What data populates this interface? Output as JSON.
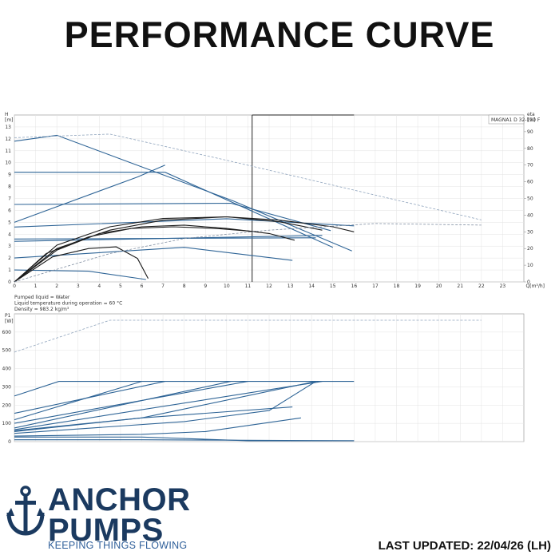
{
  "page": {
    "title": "PERFORMANCE CURVE",
    "last_updated": "LAST UPDATED: 22/04/26 (LH)"
  },
  "brand": {
    "name_line1": "ANCHOR",
    "name_line2": "PUMPS",
    "tagline": "KEEPING THINGS FLOWING",
    "color": "#1b3a60",
    "tagline_color": "#2f5f9a",
    "icon": "anchor-icon"
  },
  "chart_data": [
    {
      "type": "line",
      "model_label": "MAGNA1 D 32-120 F",
      "ylabel": "H",
      "yunit": "[m]",
      "y2label": "eta",
      "y2unit": "[%]",
      "xlabel": "Q",
      "xunit": "[m³/h]",
      "xlim": [
        0,
        24
      ],
      "ylim": [
        0,
        14
      ],
      "y2lim": [
        0,
        100
      ],
      "x_ticks": [
        0,
        1,
        2,
        3,
        4,
        5,
        6,
        7,
        8,
        9,
        10,
        11,
        12,
        13,
        14,
        15,
        16,
        17,
        18,
        19,
        20,
        21,
        22,
        23
      ],
      "y_ticks": [
        0,
        1,
        2,
        3,
        4,
        5,
        6,
        7,
        8,
        9,
        10,
        11,
        12,
        13
      ],
      "y2_ticks": [
        0,
        10,
        20,
        30,
        40,
        50,
        60,
        70,
        80,
        90
      ],
      "grid": true,
      "operating_point_q": 11.2,
      "notes": [
        "Pumped liquid = Water",
        "Liquid temperature during operation = 60 °C",
        "Density = 983.2 kg/m³"
      ],
      "series": [
        {
          "group": "head",
          "points": [
            [
              0,
              11.8
            ],
            [
              2,
              12.3
            ],
            [
              10.3,
              6.8
            ],
            [
              15.9,
              2.6
            ]
          ]
        },
        {
          "group": "head",
          "points": [
            [
              0,
              9.2
            ],
            [
              7.1,
              9.2
            ],
            [
              15,
              2.9
            ]
          ]
        },
        {
          "group": "head",
          "points": [
            [
              0,
              5
            ],
            [
              5.8,
              8.8
            ],
            [
              7.1,
              9.8
            ]
          ]
        },
        {
          "group": "head",
          "points": [
            [
              0,
              6.5
            ],
            [
              10.2,
              6.6
            ],
            [
              14.9,
              4.3
            ]
          ]
        },
        {
          "group": "head",
          "points": [
            [
              0,
              4.6
            ],
            [
              10,
              5.3
            ],
            [
              16,
              4.7
            ]
          ]
        },
        {
          "group": "head",
          "points": [
            [
              0,
              3.6
            ],
            [
              14.2,
              3.7
            ]
          ]
        },
        {
          "group": "head",
          "points": [
            [
              0,
              3.4
            ],
            [
              14.5,
              3.9
            ]
          ]
        },
        {
          "group": "head",
          "points": [
            [
              0,
              2
            ],
            [
              8,
              2.9
            ],
            [
              13.1,
              1.8
            ]
          ]
        },
        {
          "group": "head",
          "points": [
            [
              0,
              1
            ],
            [
              3.5,
              0.9
            ],
            [
              6.2,
              0.2
            ]
          ]
        },
        {
          "group": "eta",
          "points": [
            [
              0,
              0
            ],
            [
              2,
              20
            ],
            [
              4.5,
              31
            ],
            [
              7,
              37
            ],
            [
              10,
              39
            ],
            [
              12.5,
              37
            ],
            [
              15,
              33
            ],
            [
              16,
              30
            ]
          ]
        },
        {
          "group": "eta",
          "points": [
            [
              0,
              0
            ],
            [
              2,
              22
            ],
            [
              4.5,
              33
            ],
            [
              7,
              38
            ],
            [
              10,
              39
            ],
            [
              12.5,
              36
            ],
            [
              14.5,
              31
            ]
          ]
        },
        {
          "group": "eta",
          "points": [
            [
              0,
              0
            ],
            [
              2,
              19
            ],
            [
              4,
              29
            ],
            [
              6,
              33
            ],
            [
              8,
              34
            ],
            [
              10,
              32
            ],
            [
              12,
              29
            ],
            [
              13.2,
              25
            ]
          ]
        },
        {
          "group": "eta",
          "points": [
            [
              0,
              0
            ],
            [
              1.8,
              15
            ],
            [
              3.5,
              20
            ],
            [
              4.8,
              21
            ],
            [
              5.8,
              14
            ],
            [
              6.3,
              2
            ]
          ]
        },
        {
          "group": "eta",
          "points": [
            [
              0,
              0
            ],
            [
              1.5,
              17
            ],
            [
              3.5,
              27
            ],
            [
              5.5,
              32
            ],
            [
              7.5,
              33
            ],
            [
              9.5,
              32
            ],
            [
              11.5,
              30
            ]
          ]
        },
        {
          "group": "eta_envelope",
          "points": [
            [
              0,
              0
            ],
            [
              4.5,
              17
            ],
            [
              8,
              26
            ],
            [
              12,
              31
            ],
            [
              17,
              35
            ],
            [
              22,
              34
            ]
          ]
        },
        {
          "group": "head_max",
          "points": [
            [
              0,
              12.1
            ],
            [
              4.5,
              12.4
            ],
            [
              10,
              10.2
            ],
            [
              22,
              5.2
            ]
          ]
        }
      ]
    },
    {
      "type": "line",
      "ylabel": "P1",
      "yunit": "[W]",
      "xlim": [
        0,
        24
      ],
      "ylim": [
        0,
        700
      ],
      "y_ticks": [
        0,
        100,
        200,
        300,
        400,
        500,
        600
      ],
      "grid": true,
      "series": [
        {
          "group": "power",
          "points": [
            [
              0,
              250
            ],
            [
              2.1,
              330
            ],
            [
              16,
              330
            ]
          ]
        },
        {
          "group": "power",
          "points": [
            [
              0,
              155
            ],
            [
              7.1,
              330
            ]
          ]
        },
        {
          "group": "power",
          "points": [
            [
              0,
              120
            ],
            [
              6,
              330
            ]
          ]
        },
        {
          "group": "power",
          "points": [
            [
              0,
              100
            ],
            [
              11,
              330
            ]
          ]
        },
        {
          "group": "power",
          "points": [
            [
              0,
              75
            ],
            [
              10.2,
              330
            ]
          ]
        },
        {
          "group": "power",
          "points": [
            [
              0,
              65
            ],
            [
              14.5,
              330
            ]
          ]
        },
        {
          "group": "power",
          "points": [
            [
              0,
              60
            ],
            [
              6,
              130
            ],
            [
              14.2,
              330
            ]
          ]
        },
        {
          "group": "power",
          "points": [
            [
              0,
              55
            ],
            [
              6,
              130
            ],
            [
              13.1,
              190
            ]
          ]
        },
        {
          "group": "power",
          "points": [
            [
              0,
              45
            ],
            [
              8,
              110
            ],
            [
              12,
              170
            ],
            [
              14.2,
              330
            ]
          ]
        },
        {
          "group": "power",
          "points": [
            [
              0,
              30
            ],
            [
              6,
              40
            ],
            [
              9,
              55
            ],
            [
              13.5,
              130
            ]
          ]
        },
        {
          "group": "power",
          "points": [
            [
              0,
              25
            ],
            [
              6,
              25
            ],
            [
              11,
              5
            ],
            [
              16,
              5
            ]
          ]
        },
        {
          "group": "power",
          "points": [
            [
              0,
              10
            ],
            [
              6,
              10
            ],
            [
              16,
              5
            ]
          ]
        },
        {
          "group": "power_max",
          "points": [
            [
              0,
              490
            ],
            [
              4.5,
              665
            ],
            [
              22,
              665
            ]
          ]
        }
      ]
    }
  ]
}
